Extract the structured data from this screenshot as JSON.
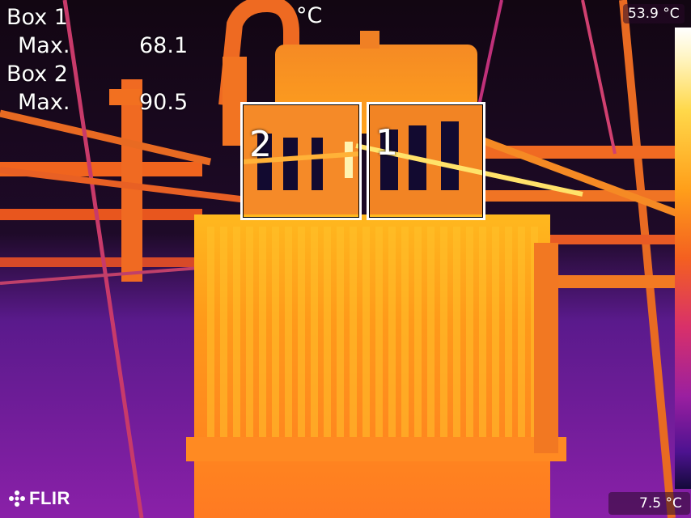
{
  "measurements": {
    "box1_label": "Box 1",
    "box1_max_label": "Max.",
    "box1_max_value": "68.1",
    "box2_label": "Box 2",
    "box2_max_label": "Max.",
    "box2_max_value": "90.5",
    "unit": "°C"
  },
  "boxes": [
    {
      "number": "2"
    },
    {
      "number": "1"
    }
  ],
  "scale": {
    "max": "53.9 °C",
    "min": "7.5 °C",
    "colors": [
      "#ffffff",
      "#ffd84a",
      "#ff9f1a",
      "#f46020",
      "#d8306a",
      "#9a1fa0",
      "#140a3a"
    ]
  },
  "brand": {
    "name": "FLIR",
    "icon": "flir-logo-icon"
  }
}
